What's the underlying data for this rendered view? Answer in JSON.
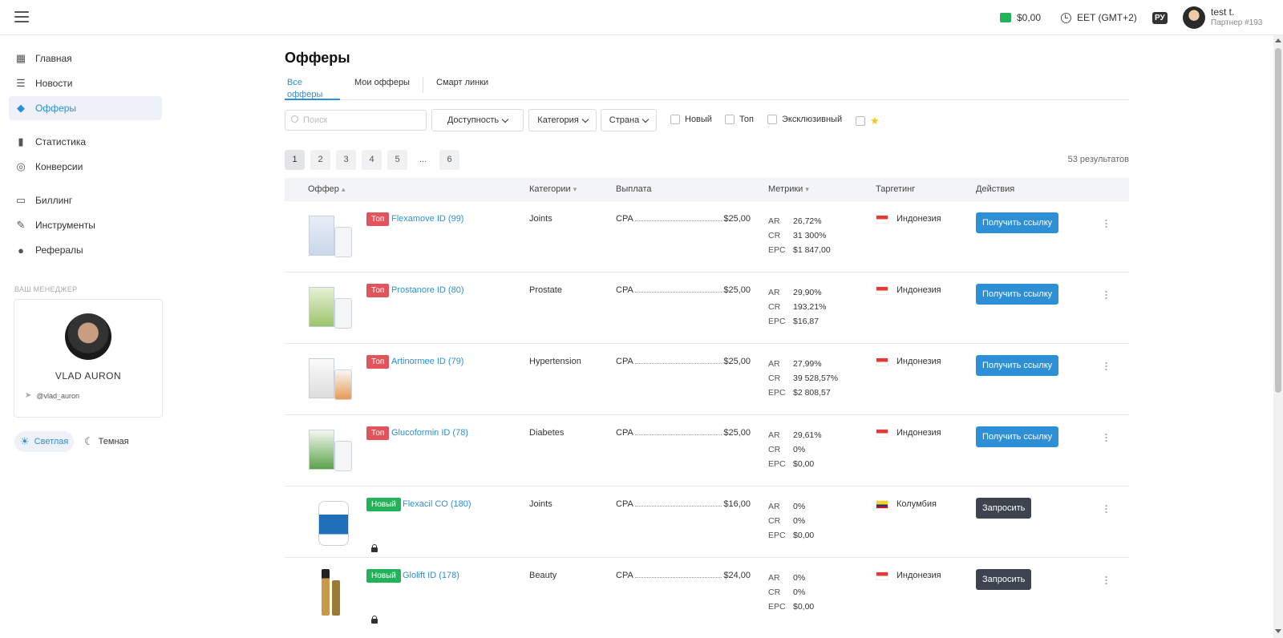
{
  "header": {
    "balance": "$0,00",
    "timezone": "EET (GMT+2)",
    "lang": "РУ",
    "user_name": "test t.",
    "user_sub": "Партнер #193"
  },
  "sidebar": {
    "items": [
      {
        "label": "Главная",
        "icon": "dashboard-icon"
      },
      {
        "label": "Новости",
        "icon": "news-icon"
      },
      {
        "label": "Офферы",
        "icon": "tag-icon"
      },
      {
        "label": "Статистика",
        "icon": "bar-chart-icon"
      },
      {
        "label": "Конверсии",
        "icon": "target-icon"
      },
      {
        "label": "Биллинг",
        "icon": "card-icon"
      },
      {
        "label": "Инструменты",
        "icon": "wrench-icon"
      },
      {
        "label": "Рефералы",
        "icon": "referral-icon"
      }
    ],
    "manager_title": "ВАШ МЕНЕДЖЕР",
    "manager_name": "VLAD AURON",
    "manager_tg": "@vlad_auron",
    "theme_light": "Светлая",
    "theme_dark": "Темная"
  },
  "main": {
    "title": "Офферы",
    "tabs": [
      "Все офферы",
      "Мои офферы",
      "Смарт линки"
    ],
    "search_placeholder": "Поиск",
    "filters": [
      "Доступность",
      "Категория",
      "Страна"
    ],
    "checks": [
      "Новый",
      "Топ",
      "Эксклюзивный"
    ],
    "pages": [
      "1",
      "2",
      "3",
      "4",
      "5",
      "...",
      "6"
    ],
    "results": "53  результатов",
    "columns": [
      "Оффер",
      "Категории",
      "Выплата",
      "Метрики",
      "Таргетинг",
      "Действия"
    ],
    "rows": [
      {
        "badge": "Топ",
        "name": "Flexamove ID (99)",
        "category": "Joints",
        "pay_type": "CPA",
        "pay": "$25,00",
        "ar": "26,72%",
        "cr": "31 300%",
        "epc": "$1 847,00",
        "geo": "Индонезия",
        "action": "Получить ссылку"
      },
      {
        "badge": "Топ",
        "name": "Prostanore ID (80)",
        "category": "Prostate",
        "pay_type": "CPA",
        "pay": "$25,00",
        "ar": "29,90%",
        "cr": "193,21%",
        "epc": "$16,87",
        "geo": "Индонезия",
        "action": "Получить ссылку"
      },
      {
        "badge": "Топ",
        "name": "Artinormee ID (79)",
        "category": "Hypertension",
        "pay_type": "CPA",
        "pay": "$25,00",
        "ar": "27,99%",
        "cr": "39 528,57%",
        "epc": "$2 808,57",
        "geo": "Индонезия",
        "action": "Получить ссылку"
      },
      {
        "badge": "Топ",
        "name": "Glucoformin ID (78)",
        "category": "Diabetes",
        "pay_type": "CPA",
        "pay": "$25,00",
        "ar": "29,61%",
        "cr": "0%",
        "epc": "$0,00",
        "geo": "Индонезия",
        "action": "Получить ссылку"
      },
      {
        "badge": "Новый",
        "name": "Flexacil CO (180)",
        "category": "Joints",
        "pay_type": "CPA",
        "pay": "$16,00",
        "ar": "0%",
        "cr": "0%",
        "epc": "$0,00",
        "geo": "Колумбия",
        "action": "Запросить"
      },
      {
        "badge": "Новый",
        "name": "Glolift ID (178)",
        "category": "Beauty",
        "pay_type": "CPA",
        "pay": "$24,00",
        "ar": "0%",
        "cr": "0%",
        "epc": "$0,00",
        "geo": "Индонезия",
        "action": "Запросить"
      }
    ],
    "metric_keys": [
      "AR",
      "CR",
      "EPC"
    ]
  }
}
